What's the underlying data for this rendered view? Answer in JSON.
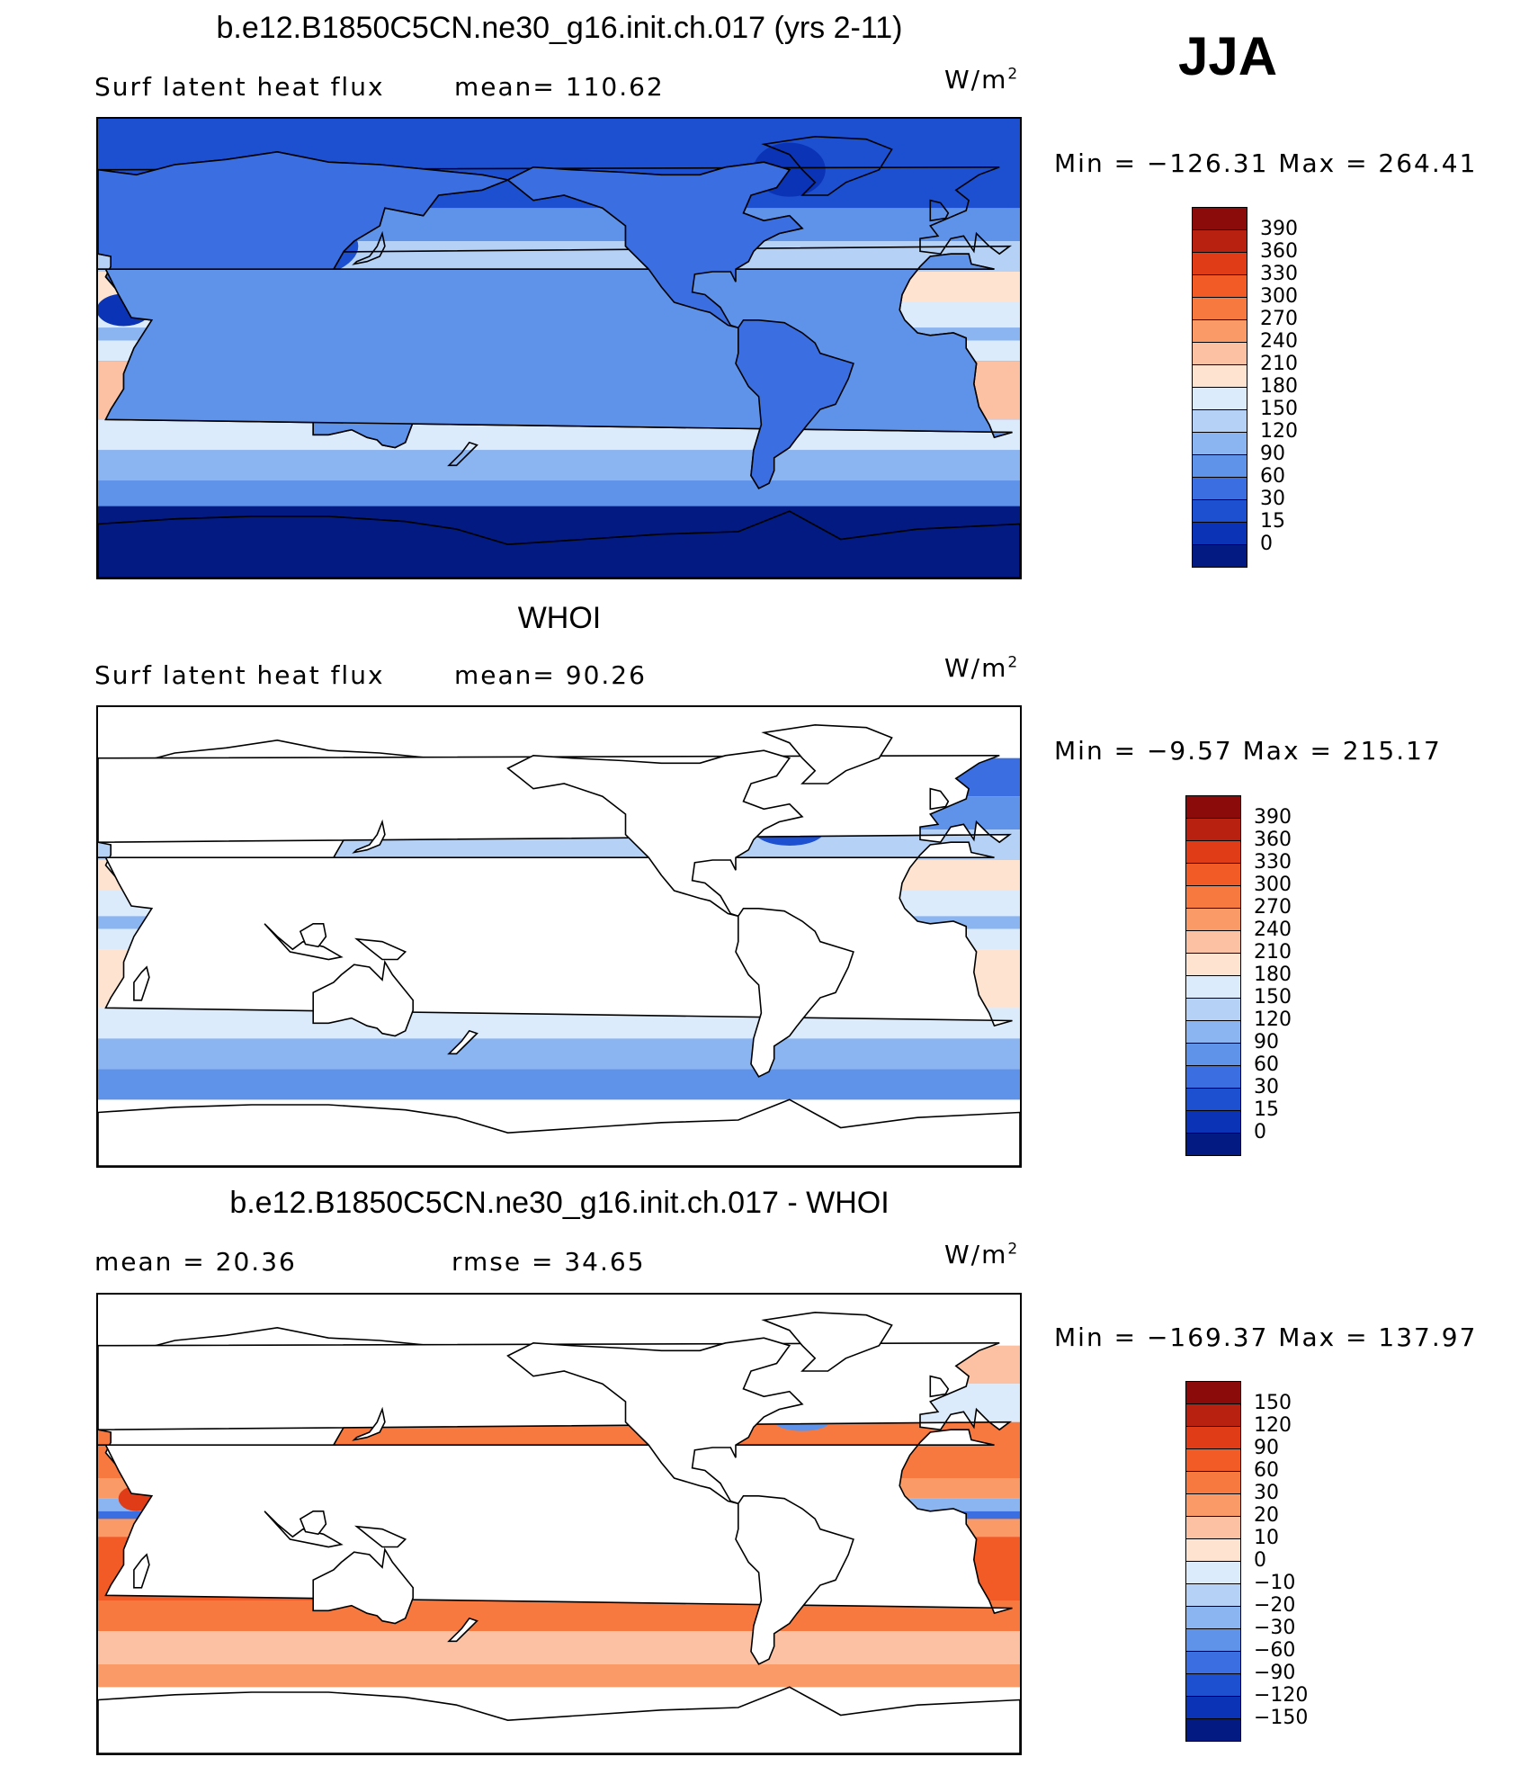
{
  "season": "JJA",
  "units_label": "W/m",
  "units_sup": "2",
  "panels": [
    {
      "title": "b.e12.B1850C5CN.ne30_g16.init.ch.017 (yrs 2-11)",
      "left_text": "Surf  latent  heat  flux",
      "mid_text": "mean=  110.62",
      "minmax": "Min  =  −126.31  Max  =  264.41",
      "field": "model",
      "colorbar": {
        "labels": [
          "390",
          "360",
          "330",
          "300",
          "270",
          "240",
          "210",
          "180",
          "150",
          "120",
          "90",
          "60",
          "30",
          "15",
          "0"
        ],
        "colors": [
          "#8b0b0b",
          "#b8200f",
          "#e03c17",
          "#f25a26",
          "#f7793f",
          "#fa9a66",
          "#fcc1a2",
          "#fde3d0",
          "#dcebfb",
          "#b5d2f6",
          "#8ab5f0",
          "#5f93ea",
          "#3b6fe1",
          "#1d4fd1",
          "#0a33b5",
          "#021a82"
        ]
      }
    },
    {
      "title": "WHOI",
      "left_text": "Surf  latent  heat  flux",
      "mid_text": "mean=   90.26",
      "minmax": "Min  =   −9.57  Max  =  215.17",
      "field": "obs",
      "colorbar": {
        "labels": [
          "390",
          "360",
          "330",
          "300",
          "270",
          "240",
          "210",
          "180",
          "150",
          "120",
          "90",
          "60",
          "30",
          "15",
          "0"
        ],
        "colors": [
          "#8b0b0b",
          "#b8200f",
          "#e03c17",
          "#f25a26",
          "#f7793f",
          "#fa9a66",
          "#fcc1a2",
          "#fde3d0",
          "#dcebfb",
          "#b5d2f6",
          "#8ab5f0",
          "#5f93ea",
          "#3b6fe1",
          "#1d4fd1",
          "#0a33b5",
          "#021a82"
        ]
      }
    },
    {
      "title": "b.e12.B1850C5CN.ne30_g16.init.ch.017 - WHOI",
      "left_text": "mean  =    20.36",
      "mid_text": "rmse  =    34.65",
      "minmax": "Min  =  −169.37  Max  =  137.97",
      "field": "diff",
      "colorbar": {
        "labels": [
          "150",
          "120",
          "90",
          "60",
          "30",
          "20",
          "10",
          "0",
          "−10",
          "−20",
          "−30",
          "−60",
          "−90",
          "−120",
          "−150"
        ],
        "colors": [
          "#8b0b0b",
          "#b8200f",
          "#e03c17",
          "#f25a26",
          "#f7793f",
          "#fa9a66",
          "#fcc1a2",
          "#fde3d0",
          "#dcebfb",
          "#b5d2f6",
          "#8ab5f0",
          "#5f93ea",
          "#3b6fe1",
          "#1d4fd1",
          "#0a33b5",
          "#021a82"
        ]
      }
    }
  ]
}
